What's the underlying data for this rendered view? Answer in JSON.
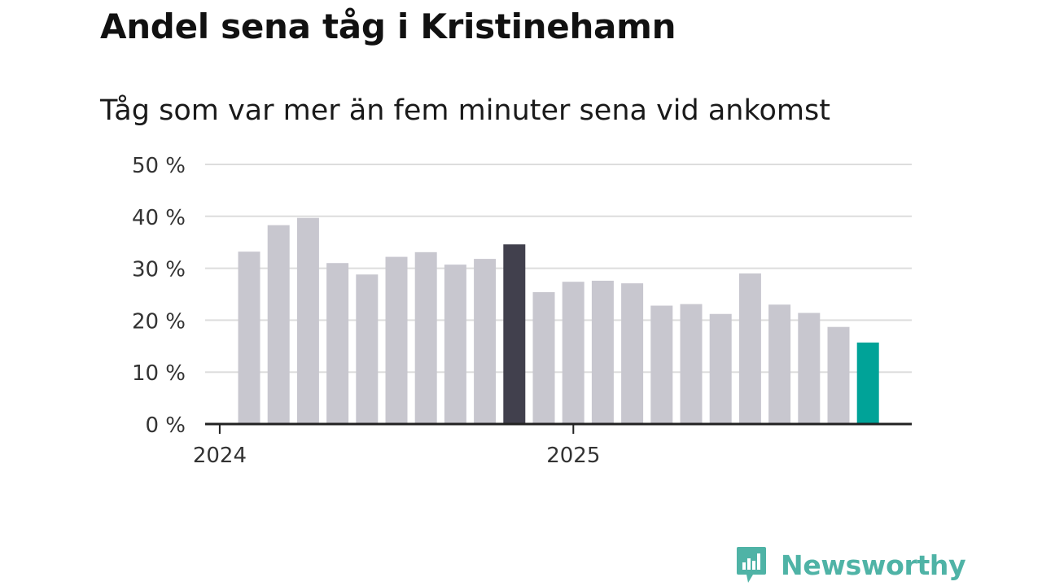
{
  "title": "Andel sena tåg i Kristinehamn",
  "subtitle": "Tåg som var mer än fem minuter sena vid ankomst",
  "brand": "Newsworthy",
  "colors": {
    "bar_default": "#c8c7cf",
    "bar_highlight": "#41404d",
    "bar_latest": "#00a398",
    "grid": "#dddddd",
    "axis": "#222222",
    "brand": "#4fb3a6"
  },
  "chart_data": {
    "type": "bar",
    "x": [
      "2024-01",
      "2024-02",
      "2024-03",
      "2024-04",
      "2024-05",
      "2024-06",
      "2024-07",
      "2024-08",
      "2024-09",
      "2024-10",
      "2024-11",
      "2024-12",
      "2025-01",
      "2025-02",
      "2025-03",
      "2025-04",
      "2025-05",
      "2025-06",
      "2025-07",
      "2025-08",
      "2025-09",
      "2025-10"
    ],
    "values": [
      33.2,
      38.3,
      39.7,
      31.0,
      28.8,
      32.2,
      33.1,
      30.7,
      31.8,
      34.6,
      25.4,
      27.4,
      27.6,
      27.1,
      22.8,
      23.1,
      21.2,
      29.0,
      23.0,
      21.4,
      18.7,
      15.7
    ],
    "highlight_index": 9,
    "latest_index": 21,
    "ylim": [
      0,
      50
    ],
    "yticks": [
      0,
      10,
      20,
      30,
      40,
      50
    ],
    "ytick_labels": [
      "0 %",
      "10 %",
      "20 %",
      "30 %",
      "40 %",
      "50 %"
    ],
    "xtick_labels": [
      {
        "label": "2024",
        "at_index": 0
      },
      {
        "label": "2025",
        "at_index": 12
      }
    ],
    "grid": true
  }
}
